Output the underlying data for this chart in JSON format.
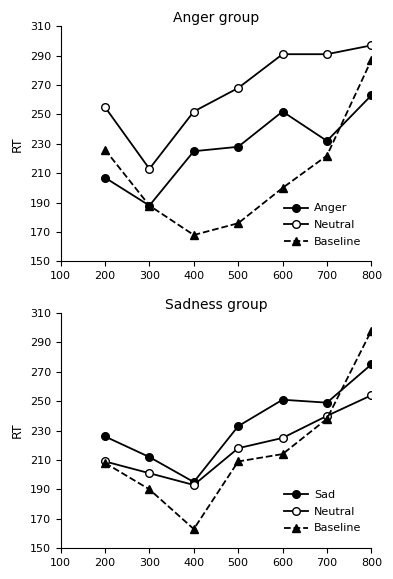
{
  "x": [
    200,
    300,
    400,
    500,
    600,
    700,
    800
  ],
  "anger_group": {
    "title": "Anger group",
    "anger": [
      207,
      188,
      225,
      228,
      252,
      232,
      263
    ],
    "neutral": [
      255,
      213,
      252,
      268,
      291,
      291,
      297
    ],
    "baseline": [
      226,
      188,
      168,
      176,
      200,
      222,
      287
    ]
  },
  "sadness_group": {
    "title": "Sadness group",
    "sad": [
      226,
      212,
      195,
      233,
      251,
      249,
      275
    ],
    "neutral": [
      209,
      201,
      193,
      218,
      225,
      240,
      254
    ],
    "baseline": [
      208,
      190,
      163,
      209,
      214,
      238,
      298
    ]
  },
  "ylim": [
    150,
    310
  ],
  "xlim": [
    100,
    800
  ],
  "yticks": [
    150,
    170,
    190,
    210,
    230,
    250,
    270,
    290,
    310
  ],
  "xticks": [
    100,
    200,
    300,
    400,
    500,
    600,
    700,
    800
  ],
  "ylabel": "RT",
  "legend_anger": [
    "Anger",
    "Neutral",
    "Baseline"
  ],
  "legend_sadness": [
    "Sad",
    "Neutral",
    "Baseline"
  ]
}
